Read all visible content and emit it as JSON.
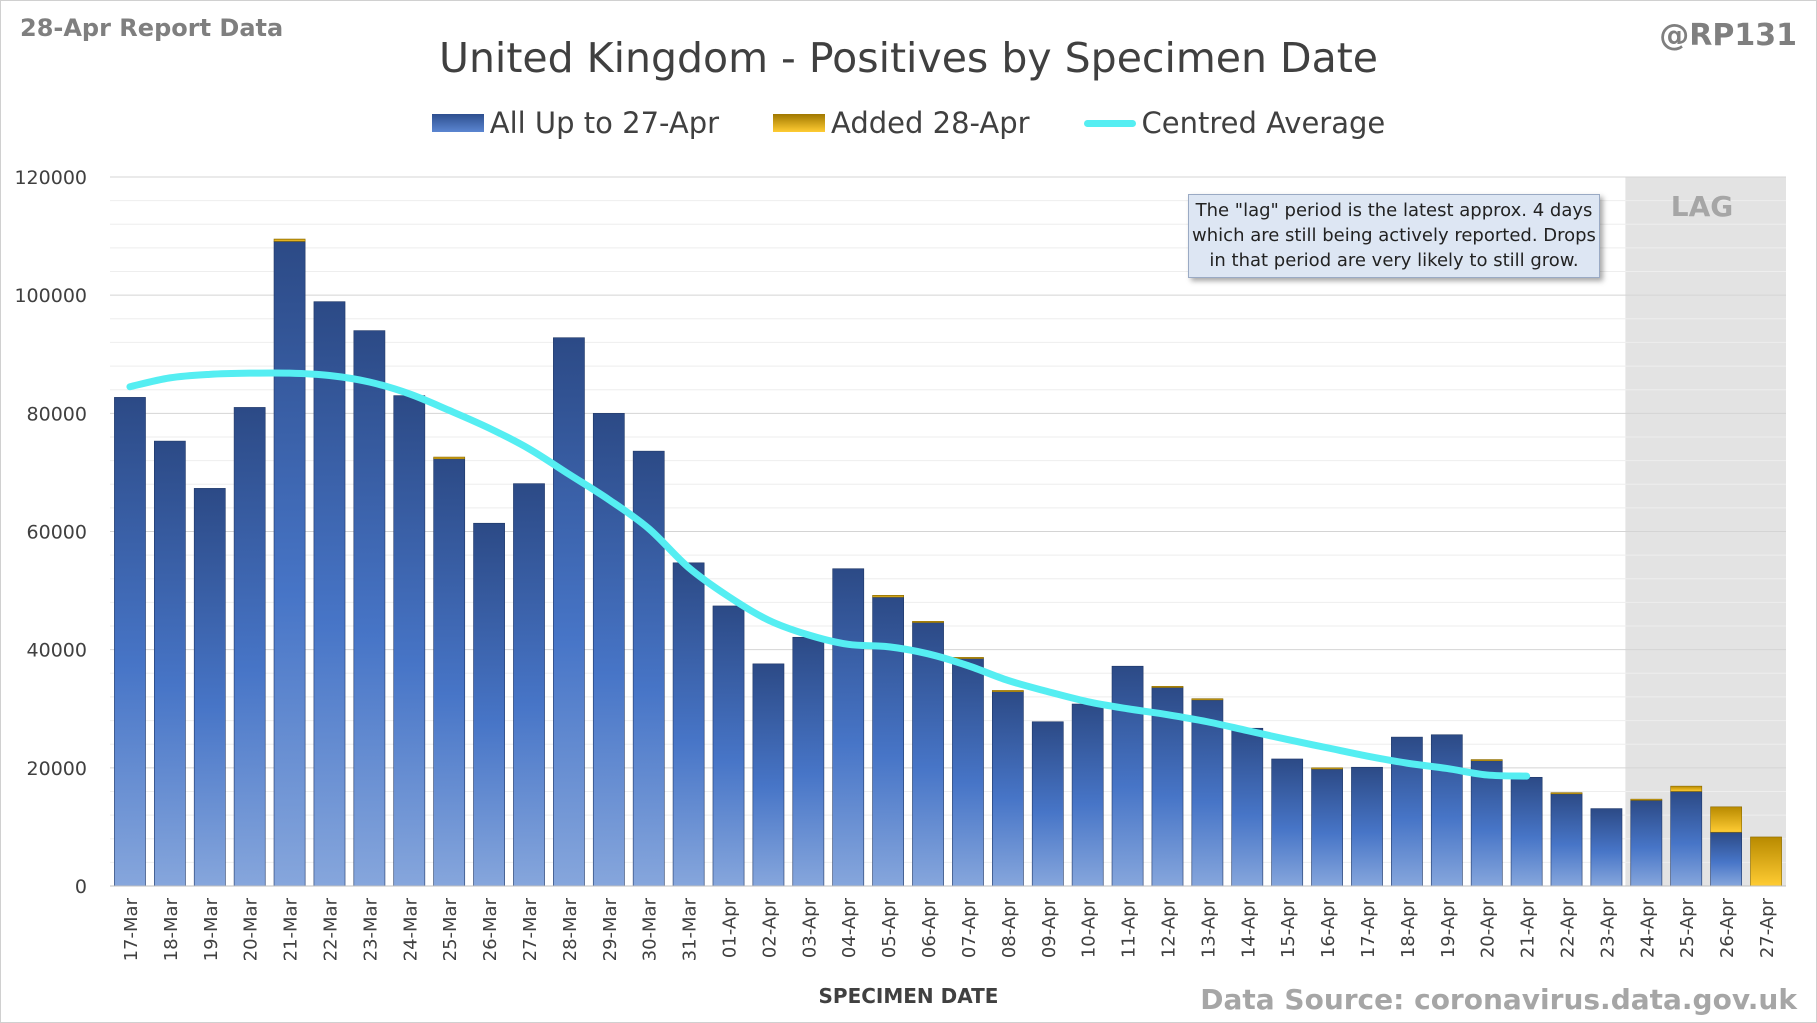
{
  "header": {
    "report_tag": "28-Apr Report Data",
    "handle": "@RP131"
  },
  "legend": {
    "items": [
      {
        "label": "All Up to 27-Apr",
        "color": "#3a64b3"
      },
      {
        "label": "Added 28-Apr",
        "color": "#f2b400"
      },
      {
        "label": "Centred Average",
        "color": "#55eef2"
      }
    ]
  },
  "annotation": {
    "lines": [
      "The \"lag\" period is the latest approx. 4 days",
      "which are still being actively reported.  Drops",
      "in that period are very likely to still grow."
    ],
    "lag_label": "LAG"
  },
  "footer": {
    "source": "Data Source: coronavirus.data.gov.uk"
  },
  "chart_data": {
    "type": "bar",
    "title": "United Kingdom - Positives by Specimen Date",
    "xlabel": "SPECIMEN DATE",
    "ylabel": "",
    "ylim": [
      0,
      120000
    ],
    "yticks": [
      0,
      20000,
      40000,
      60000,
      80000,
      100000,
      120000
    ],
    "grid": true,
    "stacked": true,
    "legend_position": "top",
    "categories": [
      "17-Mar",
      "18-Mar",
      "19-Mar",
      "20-Mar",
      "21-Mar",
      "22-Mar",
      "23-Mar",
      "24-Mar",
      "25-Mar",
      "26-Mar",
      "27-Mar",
      "28-Mar",
      "29-Mar",
      "30-Mar",
      "31-Mar",
      "01-Apr",
      "02-Apr",
      "03-Apr",
      "04-Apr",
      "05-Apr",
      "06-Apr",
      "07-Apr",
      "08-Apr",
      "09-Apr",
      "10-Apr",
      "11-Apr",
      "12-Apr",
      "13-Apr",
      "14-Apr",
      "15-Apr",
      "16-Apr",
      "17-Apr",
      "18-Apr",
      "19-Apr",
      "20-Apr",
      "21-Apr",
      "22-Apr",
      "23-Apr",
      "24-Apr",
      "25-Apr",
      "26-Apr",
      "27-Apr"
    ],
    "series": [
      {
        "name": "All Up to 27-Apr",
        "color": "#3a64b3",
        "values": [
          82700,
          75300,
          67300,
          81000,
          109100,
          98900,
          94000,
          83000,
          72300,
          61400,
          68100,
          92800,
          80000,
          73600,
          54700,
          47400,
          37600,
          42100,
          53700,
          48900,
          44600,
          38500,
          32900,
          27800,
          30800,
          37200,
          33600,
          31500,
          26700,
          21500,
          19800,
          20100,
          25200,
          25600,
          21200,
          18400,
          15600,
          13100,
          14500,
          16000,
          9100,
          0
        ],
        "stack": "positives"
      },
      {
        "name": "Added 28-Apr",
        "color": "#f2b400",
        "values": [
          0,
          0,
          0,
          0,
          400,
          0,
          0,
          0,
          300,
          0,
          0,
          0,
          0,
          0,
          0,
          0,
          0,
          0,
          0,
          300,
          200,
          200,
          200,
          0,
          0,
          0,
          200,
          200,
          0,
          0,
          200,
          0,
          0,
          0,
          200,
          0,
          200,
          0,
          200,
          900,
          4300,
          8300
        ],
        "stack": "positives"
      },
      {
        "name": "Centred Average",
        "type": "line",
        "color": "#55eef2",
        "values": [
          84500,
          86000,
          86600,
          86800,
          86800,
          86400,
          85300,
          83300,
          80500,
          77500,
          74000,
          69700,
          65400,
          60500,
          53900,
          49000,
          45000,
          42500,
          40900,
          40500,
          39300,
          37300,
          34800,
          32900,
          31200,
          30000,
          29000,
          27800,
          26300,
          24800,
          23400,
          22000,
          20800,
          19900,
          18800,
          18600,
          null,
          null,
          null,
          null,
          null,
          null
        ]
      }
    ],
    "shaded_region": {
      "label": "LAG",
      "from": "24-Apr",
      "to": "27-Apr"
    }
  }
}
